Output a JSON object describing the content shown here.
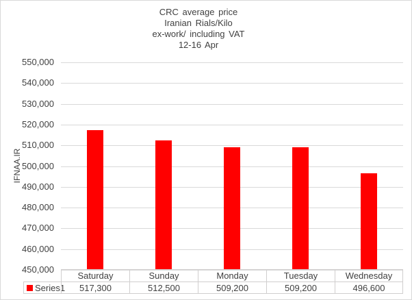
{
  "chart_data": {
    "type": "bar",
    "title_lines": [
      "CRC average price",
      "Iranian Rials/Kilo",
      "ex-work/ including VAT",
      "12-16 Apr"
    ],
    "ylabel": "IFNAA.IR",
    "xlabel": "",
    "ylim": [
      450000,
      550000
    ],
    "ytick_step": 10000,
    "ytick_labels": [
      "550,000",
      "540,000",
      "530,000",
      "520,000",
      "510,000",
      "500,000",
      "490,000",
      "480,000",
      "470,000",
      "460,000",
      "450,000"
    ],
    "categories": [
      "Saturday",
      "Sunday",
      "Monday",
      "Tuesday",
      "Wednesday"
    ],
    "series": [
      {
        "name": "Series1",
        "values": [
          517300,
          512500,
          509200,
          509200,
          496600
        ]
      }
    ],
    "value_labels": [
      "517,300",
      "512,500",
      "509,200",
      "509,200",
      "496,600"
    ],
    "grid": true,
    "legend_position": "bottom-table",
    "colors": {
      "bar": "#ff0000",
      "gridline": "#d9d9d9",
      "table_border": "#d0cece",
      "text": "#404040",
      "chart_border": "#d9d9d9",
      "background": "#ffffff"
    }
  }
}
